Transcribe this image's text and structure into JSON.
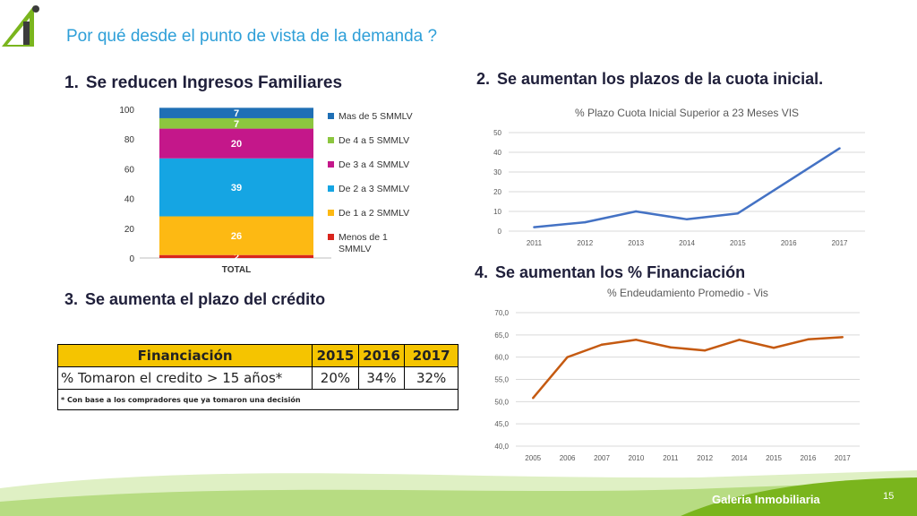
{
  "slide": {
    "title": "Por qué desde el punto de vista de la demanda ?",
    "page_number": "15",
    "brand": "Galeria Inmobiliaria",
    "accent_color": "#2e9fd8",
    "logo_color": "#7ab51d"
  },
  "sections": [
    {
      "num": "1.",
      "label": "Se reducen Ingresos Familiares"
    },
    {
      "num": "2.",
      "label": "Se aumentan los plazos de la cuota inicial."
    },
    {
      "num": "3.",
      "label": "Se aumenta el plazo del crédito"
    },
    {
      "num": "4.",
      "label": "Se aumentan los % Financiación"
    }
  ],
  "table": {
    "headers": [
      "Financiación",
      "2015",
      "2016",
      "2017"
    ],
    "rows": [
      [
        "% Tomaron el credito > 15 años*",
        "20%",
        "34%",
        "32%"
      ]
    ],
    "note": "* Con base a los compradores que ya tomaron una decisión"
  },
  "chart_data": [
    {
      "type": "bar",
      "stacked": true,
      "categories": [
        "TOTAL"
      ],
      "ylim": [
        0,
        100
      ],
      "yticks": [
        0,
        20,
        40,
        60,
        80,
        100
      ],
      "legend_position": "right",
      "series": [
        {
          "name": "Menos de 1 SMMLV",
          "values": [
            2
          ],
          "color": "#d9251d"
        },
        {
          "name": "De 1 a 2 SMMLV",
          "values": [
            26
          ],
          "color": "#fdb913"
        },
        {
          "name": "De 2 a 3 SMMLV",
          "values": [
            39
          ],
          "color": "#15a5e3"
        },
        {
          "name": "De 3 a 4 SMMLV",
          "values": [
            20
          ],
          "color": "#c4178a"
        },
        {
          "name": "De 4 a 5 SMMLV",
          "values": [
            7
          ],
          "color": "#8cc63f"
        },
        {
          "name": "Mas de 5 SMMLV",
          "values": [
            7
          ],
          "color": "#1f6fb5"
        }
      ]
    },
    {
      "type": "line",
      "title": "% Plazo Cuota Inicial Superior a 23 Meses VIS",
      "x": [
        "2011",
        "2012",
        "2013",
        "2014",
        "2015",
        "2016",
        "2017"
      ],
      "values": [
        2,
        4.5,
        10,
        6,
        9,
        25.5,
        42
      ],
      "ylim": [
        0,
        50
      ],
      "yticks": [
        0,
        10,
        20,
        30,
        40,
        50
      ],
      "grid": true,
      "color": "#4472c4"
    },
    {
      "type": "line",
      "title": "% Endeudamiento Promedio - Vis",
      "x": [
        "2005",
        "2006",
        "2007",
        "2010",
        "2011",
        "2012",
        "2014",
        "2015",
        "2016",
        "2017"
      ],
      "values": [
        50.8,
        60.0,
        62.8,
        63.9,
        62.2,
        61.5,
        63.9,
        62.1,
        64.0,
        64.5
      ],
      "ylim": [
        40,
        70
      ],
      "yticks": [
        "40,0",
        "45,0",
        "50,0",
        "55,0",
        "60,0",
        "65,0",
        "70,0"
      ],
      "grid": true,
      "color": "#c55a11"
    }
  ]
}
